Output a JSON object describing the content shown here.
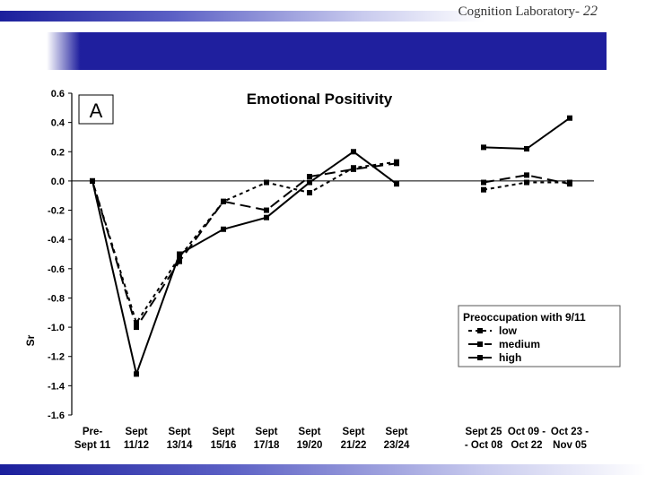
{
  "slide": {
    "label": "Cognition Laboratory-",
    "number": "22"
  },
  "chart_data": {
    "type": "line",
    "panel_label": "A",
    "title": "Emotional Positivity",
    "xlabel": "",
    "ylabel": "Sr",
    "ylim": [
      -1.6,
      0.6
    ],
    "yticks": [
      "0.6",
      "0.4",
      "0.2",
      "0.0",
      "-0.2",
      "-0.4",
      "-0.6",
      "-0.8",
      "-1.0",
      "-1.2",
      "-1.4",
      "-1.6"
    ],
    "categories": [
      [
        "Pre-",
        "Sept 11"
      ],
      [
        "Sept",
        "11/12"
      ],
      [
        "Sept",
        "13/14"
      ],
      [
        "Sept",
        "15/16"
      ],
      [
        "Sept",
        "17/18"
      ],
      [
        "Sept",
        "19/20"
      ],
      [
        "Sept",
        "21/22"
      ],
      [
        "Sept",
        "23/24"
      ],
      [
        "Sept 25",
        "- Oct 08"
      ],
      [
        "Oct 09 -",
        "Oct 22"
      ],
      [
        "Oct 23 -",
        "Nov 05"
      ]
    ],
    "legend_title": "Preoccupation with 9/11",
    "legend_position": "lower-right",
    "series": [
      {
        "name": "low",
        "style": "short-dash",
        "segments": [
          [
            0.0,
            -0.97,
            -0.52,
            -0.14,
            -0.01,
            -0.08,
            0.09,
            0.13
          ],
          [
            -0.06,
            -0.01,
            -0.01
          ]
        ]
      },
      {
        "name": "medium",
        "style": "long-dash",
        "segments": [
          [
            0.0,
            -1.0,
            -0.55,
            -0.14,
            -0.2,
            0.03,
            0.08,
            0.12
          ],
          [
            -0.01,
            0.04,
            -0.02
          ]
        ]
      },
      {
        "name": "high",
        "style": "solid",
        "segments": [
          [
            0.0,
            -1.32,
            -0.5,
            -0.33,
            -0.25,
            -0.01,
            0.2,
            -0.02
          ],
          [
            0.23,
            0.22,
            0.43
          ]
        ]
      }
    ]
  }
}
